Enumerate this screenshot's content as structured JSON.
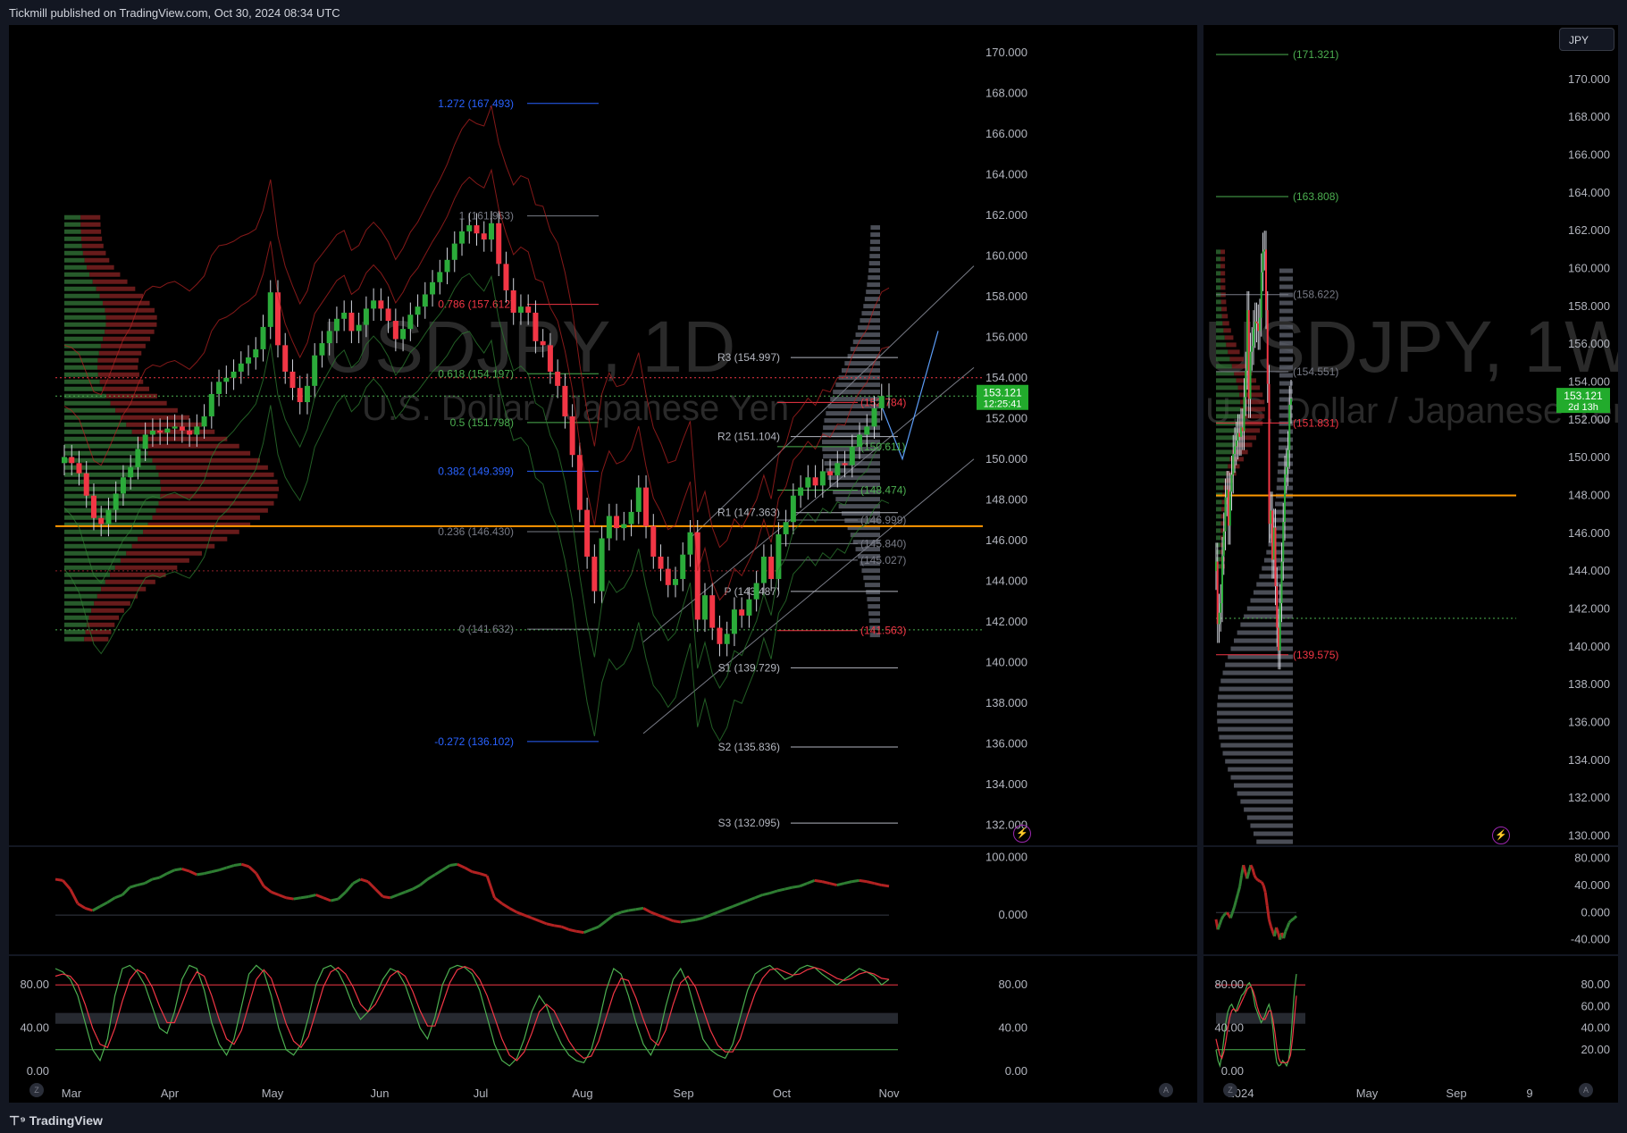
{
  "header": {
    "published": "Tickmill published on TradingView.com, Oct 30, 2024 08:34 UTC"
  },
  "footer": {
    "brand": "TradingView"
  },
  "currency_button": "JPY",
  "colors": {
    "up": "#26a69a",
    "down": "#ef5350",
    "green": "#4caf50",
    "red": "#f23645",
    "bg": "#000000",
    "orange": "#ff9800",
    "blue": "#2962ff"
  },
  "chart_data": [
    {
      "type": "line",
      "name": "USDJPY 1D main pane",
      "watermark_symbol": "USDJPY, 1D",
      "watermark_desc": "U.S. Dollar / Japanese Yen",
      "y_ticks": [
        "170.000",
        "168.000",
        "166.000",
        "164.000",
        "162.000",
        "160.000",
        "158.000",
        "156.000",
        "154.000",
        "152.000",
        "150.000",
        "148.000",
        "146.000",
        "144.000",
        "142.000",
        "140.000",
        "138.000",
        "136.000",
        "134.000",
        "132.000"
      ],
      "ylim": [
        131,
        171
      ],
      "x_ticks": [
        "Mar",
        "Apr",
        "May",
        "Jun",
        "Jul",
        "Aug",
        "Sep",
        "Oct",
        "Nov"
      ],
      "last_price": "153.121",
      "countdown": "12:25:41",
      "fib_levels": [
        {
          "label": "1.272 (167.493)",
          "value": 167.493,
          "color": "#2962ff"
        },
        {
          "label": "1 (161.963)",
          "value": 161.963,
          "color": "#787b86"
        },
        {
          "label": "0.786 (157.612)",
          "value": 157.612,
          "color": "#f23645"
        },
        {
          "label": "0.618 (154.197)",
          "value": 154.197,
          "color": "#4caf50"
        },
        {
          "label": "0.5 (151.798)",
          "value": 151.798,
          "color": "#4caf50"
        },
        {
          "label": "0.382 (149.399)",
          "value": 149.399,
          "color": "#2962ff"
        },
        {
          "label": "0.236 (146.430)",
          "value": 146.43,
          "color": "#787b86"
        },
        {
          "label": "0 (141.632)",
          "value": 141.632,
          "color": "#787b86"
        },
        {
          "label": "-0.272 (136.102)",
          "value": 136.102,
          "color": "#2962ff"
        }
      ],
      "pivots": [
        {
          "label": "R3 (154.997)",
          "value": 154.997
        },
        {
          "label": "R2 (151.104)",
          "value": 151.104
        },
        {
          "label": "R1 (147.363)",
          "value": 147.363
        },
        {
          "label": "P (143.487)",
          "value": 143.487
        },
        {
          "label": "S1 (139.729)",
          "value": 139.729
        },
        {
          "label": "S2 (135.836)",
          "value": 135.836
        },
        {
          "label": "S3 (132.095)",
          "value": 132.095
        }
      ],
      "right_labels": [
        {
          "label": "(152.784)",
          "value": 152.784,
          "color": "#f23645"
        },
        {
          "label": "(150.611)",
          "value": 150.611,
          "color": "#4caf50"
        },
        {
          "label": "(148.474)",
          "value": 148.474,
          "color": "#4caf50"
        },
        {
          "label": "(146.999)",
          "value": 146.999,
          "color": "#787b86"
        },
        {
          "label": "(145.840)",
          "value": 145.84,
          "color": "#787b86"
        },
        {
          "label": "(145.027)",
          "value": 145.027,
          "color": "#787b86"
        },
        {
          "label": "(141.563)",
          "value": 141.563,
          "color": "#f23645"
        }
      ],
      "closes": [
        150.1,
        149.8,
        149.3,
        148.2,
        147.1,
        146.8,
        147.5,
        148.3,
        149.1,
        149.6,
        150.5,
        151.2,
        151.4,
        151.3,
        151.5,
        151.6,
        151.4,
        151.2,
        151.6,
        152.1,
        153.2,
        153.8,
        154.0,
        154.3,
        154.7,
        155.0,
        155.4,
        156.5,
        158.2,
        155.6,
        154.3,
        153.5,
        152.8,
        153.6,
        155.1,
        155.7,
        156.3,
        156.9,
        157.2,
        156.3,
        156.6,
        157.4,
        157.8,
        157.4,
        156.8,
        155.9,
        156.4,
        157.1,
        157.5,
        158.1,
        158.7,
        159.2,
        159.8,
        160.6,
        161.2,
        161.5,
        161.1,
        160.8,
        161.6,
        159.6,
        158.3,
        157.2,
        157.5,
        157.2,
        155.8,
        155.6,
        154.3,
        153.6,
        152.1,
        150.2,
        147.5,
        145.2,
        143.5,
        146.1,
        147.2,
        146.6,
        146.8,
        147.4,
        148.6,
        146.7,
        145.2,
        144.6,
        143.8,
        144.1,
        145.3,
        146.4,
        142.1,
        143.3,
        141.7,
        140.9,
        141.4,
        142.6,
        142.3,
        143.1,
        143.9,
        145.2,
        144.1,
        146.3,
        146.9,
        148.2,
        148.6,
        149.1,
        148.7,
        149.4,
        149.2,
        149.8,
        149.7,
        150.6,
        151.2,
        151.6,
        152.5,
        153.1,
        153.121
      ],
      "profile_y": 146.7,
      "dotted_red": 154.0,
      "dotted_green": 153.1,
      "dotted_green_low": 141.6
    },
    {
      "type": "line",
      "name": "Oscillator pane",
      "y_ticks": [
        "100.000",
        "0.000"
      ],
      "values": [
        62,
        60,
        45,
        20,
        12,
        8,
        15,
        22,
        30,
        35,
        48,
        52,
        55,
        62,
        65,
        72,
        78,
        80,
        76,
        70,
        72,
        75,
        78,
        82,
        86,
        88,
        84,
        72,
        50,
        40,
        35,
        30,
        28,
        30,
        32,
        35,
        30,
        25,
        28,
        40,
        55,
        62,
        58,
        45,
        32,
        30,
        35,
        40,
        45,
        52,
        62,
        70,
        78,
        86,
        88,
        82,
        75,
        72,
        68,
        30,
        20,
        12,
        5,
        0,
        -5,
        -10,
        -15,
        -18,
        -20,
        -25,
        -28,
        -30,
        -25,
        -20,
        -10,
        0,
        5,
        8,
        10,
        12,
        5,
        0,
        -5,
        -10,
        -12,
        -10,
        -8,
        -5,
        0,
        5,
        10,
        15,
        20,
        25,
        30,
        35,
        38,
        42,
        45,
        48,
        50,
        55,
        60,
        58,
        55,
        52,
        55,
        58,
        60,
        58,
        55,
        52,
        50
      ],
      "ylim": [
        -60,
        110
      ]
    },
    {
      "type": "line",
      "name": "Stochastic RSI pane",
      "y_ticks": [
        "80.00",
        "40.00",
        "0.00"
      ],
      "levels": [
        80,
        50,
        20
      ],
      "k": [
        95,
        92,
        85,
        70,
        45,
        20,
        10,
        30,
        70,
        95,
        98,
        92,
        80,
        60,
        40,
        35,
        55,
        85,
        98,
        95,
        75,
        45,
        25,
        15,
        30,
        60,
        90,
        98,
        92,
        70,
        40,
        20,
        15,
        25,
        50,
        80,
        95,
        98,
        92,
        78,
        60,
        48,
        55,
        70,
        85,
        95,
        92,
        80,
        60,
        40,
        30,
        50,
        80,
        95,
        98,
        96,
        90,
        75,
        50,
        25,
        10,
        5,
        12,
        30,
        55,
        70,
        60,
        40,
        25,
        15,
        10,
        8,
        20,
        45,
        75,
        95,
        90,
        70,
        45,
        25,
        15,
        30,
        60,
        85,
        95,
        80,
        55,
        30,
        20,
        15,
        12,
        25,
        50,
        75,
        90,
        95,
        98,
        92,
        85,
        88,
        95,
        98,
        96,
        90,
        85,
        80,
        85,
        90,
        95,
        92,
        88,
        80,
        85
      ],
      "d": [
        88,
        90,
        88,
        80,
        62,
        40,
        25,
        22,
        40,
        65,
        85,
        94,
        90,
        78,
        60,
        45,
        45,
        62,
        80,
        92,
        88,
        70,
        48,
        30,
        25,
        38,
        62,
        85,
        94,
        86,
        66,
        44,
        28,
        22,
        32,
        55,
        78,
        92,
        96,
        90,
        78,
        62,
        55,
        62,
        75,
        88,
        93,
        88,
        74,
        56,
        42,
        42,
        62,
        82,
        94,
        97,
        94,
        85,
        70,
        50,
        30,
        15,
        10,
        18,
        35,
        55,
        62,
        56,
        42,
        28,
        18,
        12,
        14,
        28,
        50,
        72,
        86,
        84,
        68,
        48,
        30,
        24,
        38,
        62,
        82,
        88,
        78,
        58,
        38,
        24,
        18,
        18,
        30,
        52,
        72,
        86,
        94,
        95,
        92,
        89,
        90,
        94,
        96,
        94,
        90,
        86,
        84,
        86,
        90,
        92,
        90,
        86,
        85
      ],
      "ylim": [
        -5,
        100
      ]
    },
    {
      "type": "line",
      "name": "USDJPY 1W pane",
      "watermark_symbol": "USDJPY, 1W",
      "watermark_desc": "U.S. Dollar / Japanese Yen",
      "y_ticks": [
        "170.000",
        "168.000",
        "166.000",
        "164.000",
        "162.000",
        "160.000",
        "158.000",
        "156.000",
        "154.000",
        "152.000",
        "150.000",
        "148.000",
        "146.000",
        "144.000",
        "142.000",
        "140.000",
        "138.000",
        "136.000",
        "134.000",
        "132.000",
        "130.000"
      ],
      "ylim": [
        129.5,
        172.5
      ],
      "x_ticks": [
        "2024",
        "May",
        "Sep",
        "9"
      ],
      "last_price": "153.121",
      "countdown": "2d 13h",
      "levels": [
        {
          "label": "(171.321)",
          "value": 171.321,
          "color": "#4caf50"
        },
        {
          "label": "(163.808)",
          "value": 163.808,
          "color": "#4caf50"
        },
        {
          "label": "(158.622)",
          "value": 158.622,
          "color": "#787b86"
        },
        {
          "label": "(154.551)",
          "value": 154.551,
          "color": "#787b86"
        },
        {
          "label": "(151.831)",
          "value": 151.831,
          "color": "#f23645"
        },
        {
          "label": "(139.575)",
          "value": 139.575,
          "color": "#f23645"
        }
      ],
      "closes": [
        144.5,
        141.2,
        141.8,
        142.3,
        144.8,
        146.1,
        147.9,
        148.3,
        146.4,
        148.2,
        149.1,
        150.2,
        150.6,
        150.9,
        151.3,
        151.1,
        151.6,
        151.4,
        153.2,
        154.6,
        157.8,
        153.1,
        155.6,
        155.9,
        156.8,
        157.2,
        157.1,
        156.7,
        157.4,
        159.8,
        160.9,
        161.0,
        157.8,
        153.9,
        146.5,
        147.2,
        144.6,
        146.3,
        143.2,
        141.0,
        139.8,
        142.3,
        144.5,
        146.6,
        149.1,
        149.5,
        150.4,
        152.8,
        153.121
      ],
      "orange": 148.0,
      "dotted_green": 141.5
    },
    {
      "type": "line",
      "name": "Weekly oscillator pane",
      "y_ticks": [
        "80.000",
        "40.000",
        "0.000",
        "-40.000"
      ],
      "values": [
        -10,
        -25,
        -18,
        -10,
        -5,
        -2,
        0,
        -4,
        -8,
        0,
        8,
        18,
        28,
        38,
        55,
        70,
        60,
        50,
        60,
        70,
        65,
        55,
        50,
        48,
        46,
        45,
        40,
        30,
        10,
        -10,
        -20,
        -28,
        -35,
        -22,
        -30,
        -40,
        -30,
        -38,
        -28,
        -22,
        -15,
        -12,
        -10,
        -8,
        -5
      ],
      "ylim": [
        -55,
        90
      ]
    },
    {
      "type": "line",
      "name": "Weekly stochastic RSI pane",
      "y_ticks": [
        "80.00",
        "60.00",
        "40.00",
        "20.00"
      ],
      "left_y_ticks": [
        "80.00",
        "40.00",
        "0.00"
      ],
      "levels": [
        80,
        50,
        20
      ],
      "k": [
        20,
        10,
        5,
        15,
        30,
        45,
        55,
        60,
        62,
        58,
        55,
        60,
        65,
        70,
        72,
        75,
        80,
        82,
        78,
        70,
        60,
        55,
        50,
        45,
        48,
        52,
        58,
        62,
        55,
        40,
        20,
        8,
        5,
        6,
        10,
        8,
        5,
        10,
        25,
        50,
        75,
        90
      ],
      "d": [
        30,
        22,
        15,
        12,
        18,
        28,
        40,
        50,
        56,
        58,
        56,
        56,
        60,
        64,
        68,
        72,
        76,
        78,
        78,
        74,
        68,
        60,
        54,
        50,
        48,
        48,
        52,
        56,
        56,
        48,
        36,
        22,
        12,
        8,
        8,
        8,
        8,
        10,
        15,
        30,
        50,
        70
      ],
      "ylim": [
        -5,
        100
      ]
    }
  ]
}
